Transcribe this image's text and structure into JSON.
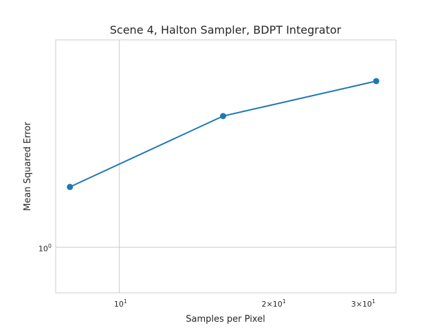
{
  "chart_data": {
    "type": "line",
    "title": "Scene 4, Halton Sampler, BDPT Integrator",
    "xlabel": "Samples per Pixel",
    "ylabel": "Mean Squared Error",
    "xscale": "log",
    "yscale": "log",
    "xlim": [
      7.5,
      35
    ],
    "ylim": [
      0.81,
      2.6
    ],
    "grid": true,
    "legend": "none",
    "series": [
      {
        "x": [
          8,
          16,
          32
        ],
        "y": [
          1.32,
          1.83,
          2.15
        ],
        "color": "#1f77b4",
        "marker": "circle"
      }
    ],
    "x_ticks": [
      {
        "value": 10,
        "base": "10",
        "exp": "1"
      },
      {
        "value": 20,
        "base": "2×10",
        "exp": "1"
      },
      {
        "value": 30,
        "base": "3×10",
        "exp": "1"
      }
    ],
    "x_gridlines": [
      10
    ],
    "y_ticks": [
      {
        "value": 1,
        "base": "10",
        "exp": "0"
      }
    ],
    "y_gridlines": [
      1
    ],
    "colors": {
      "line": "#1f77b4",
      "grid": "#cccccc",
      "frame": "#cccccc",
      "text": "#262626"
    }
  }
}
